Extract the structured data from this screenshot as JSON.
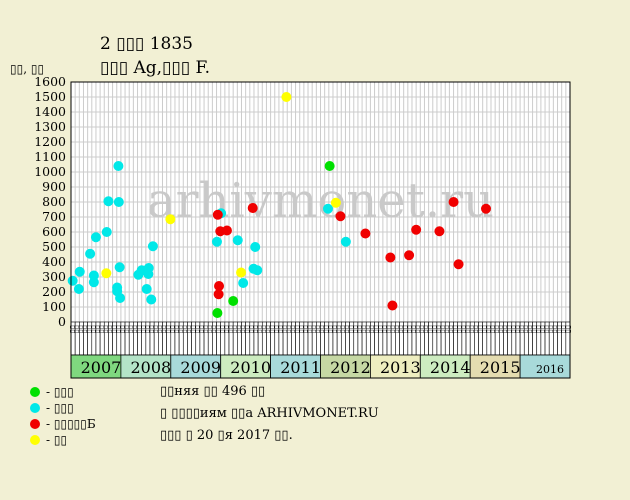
{
  "header": {
    "title_line1": "2 ▯▯▯ 1835",
    "title_line2": "▯▯▯ Ag,▯▯▯ F.",
    "y_axis_unit": "▯▯, ▯▯"
  },
  "watermark": "arhivmonet.ru",
  "legend": {
    "items": [
      {
        "label": "- ▯▯▯",
        "color": "#00e000"
      },
      {
        "label": "- ▯▯▯",
        "color": "#00e8e8"
      },
      {
        "label": "- ▯▯▯▯▯Б",
        "color": "#f00000"
      },
      {
        "label": "- ▯▯",
        "color": "#ffff00"
      }
    ]
  },
  "notes": {
    "line1": "▯▯няя ▯▯ 496 ▯▯",
    "line2": "▯ ▯▯▯▯иям ▯▯а ARHIVMONET.RU",
    "line3": "▯▯▯ ▯ 20 ▯я 2017 ▯▯."
  },
  "colors": {
    "background": "#f2f0d4",
    "plot_background": "#ffffff",
    "grid": "#cccccc"
  },
  "chart_data": {
    "type": "scatter",
    "title": "2 ▯▯▯ 1835",
    "ylim": [
      0,
      1600
    ],
    "yticks": [
      0,
      100,
      200,
      300,
      400,
      500,
      600,
      700,
      800,
      900,
      1000,
      1100,
      1200,
      1300,
      1400,
      1500,
      1600
    ],
    "grid": true,
    "slots_per_year": 12,
    "slot_labels": [
      "▯▯",
      "▯▯",
      "▯▯",
      "▯▯",
      "▯▯",
      "▯▯",
      "▯▯",
      "▯▯",
      "▯▯",
      "▯▯",
      "▯▯",
      "▯▯"
    ],
    "years": [
      {
        "label": "2007",
        "color": "#7fd87f"
      },
      {
        "label": "2008",
        "color": "#b4e4c8"
      },
      {
        "label": "2009",
        "color": "#a8dada"
      },
      {
        "label": "2010",
        "color": "#cdecc0"
      },
      {
        "label": "2011",
        "color": "#a8dada"
      },
      {
        "label": "2012",
        "color": "#c6d8a4"
      },
      {
        "label": "2013",
        "color": "#eeeec0"
      },
      {
        "label": "2014",
        "color": "#cdecc0"
      },
      {
        "label": "2015",
        "color": "#e4dcb0"
      },
      {
        "label": "2016",
        "color": "#a8dada"
      }
    ],
    "series": [
      {
        "name": "▯▯▯",
        "color": "#00e000",
        "points": [
          {
            "x": 35.2,
            "y": 60
          },
          {
            "x": 39.0,
            "y": 140
          },
          {
            "x": 62.2,
            "y": 1040
          }
        ]
      },
      {
        "name": "▯▯▯",
        "color": "#00e8e8",
        "points": [
          {
            "x": 0.4,
            "y": 275
          },
          {
            "x": 1.9,
            "y": 220
          },
          {
            "x": 2.1,
            "y": 335
          },
          {
            "x": 4.6,
            "y": 455
          },
          {
            "x": 5.5,
            "y": 310
          },
          {
            "x": 5.5,
            "y": 265
          },
          {
            "x": 6.0,
            "y": 565
          },
          {
            "x": 8.6,
            "y": 600
          },
          {
            "x": 9.0,
            "y": 805
          },
          {
            "x": 11.1,
            "y": 230
          },
          {
            "x": 11.1,
            "y": 205
          },
          {
            "x": 11.4,
            "y": 1040
          },
          {
            "x": 11.5,
            "y": 800
          },
          {
            "x": 11.7,
            "y": 365
          },
          {
            "x": 11.8,
            "y": 160
          },
          {
            "x": 16.2,
            "y": 315
          },
          {
            "x": 17.0,
            "y": 345
          },
          {
            "x": 18.2,
            "y": 220
          },
          {
            "x": 18.6,
            "y": 320
          },
          {
            "x": 18.7,
            "y": 360
          },
          {
            "x": 19.3,
            "y": 150
          },
          {
            "x": 19.7,
            "y": 505
          },
          {
            "x": 35.1,
            "y": 535
          },
          {
            "x": 36.1,
            "y": 725
          },
          {
            "x": 40.1,
            "y": 545
          },
          {
            "x": 41.4,
            "y": 260
          },
          {
            "x": 43.9,
            "y": 355
          },
          {
            "x": 44.3,
            "y": 500
          },
          {
            "x": 44.8,
            "y": 345
          },
          {
            "x": 61.8,
            "y": 755
          },
          {
            "x": 66.1,
            "y": 535
          }
        ]
      },
      {
        "name": "▯▯▯▯▯Б",
        "color": "#f00000",
        "points": [
          {
            "x": 35.3,
            "y": 715
          },
          {
            "x": 35.5,
            "y": 185
          },
          {
            "x": 35.6,
            "y": 240
          },
          {
            "x": 35.9,
            "y": 605
          },
          {
            "x": 37.5,
            "y": 610
          },
          {
            "x": 43.7,
            "y": 760
          },
          {
            "x": 64.8,
            "y": 705
          },
          {
            "x": 70.8,
            "y": 590
          },
          {
            "x": 76.8,
            "y": 430
          },
          {
            "x": 77.3,
            "y": 110
          },
          {
            "x": 81.3,
            "y": 445
          },
          {
            "x": 83.0,
            "y": 615
          },
          {
            "x": 88.6,
            "y": 605
          },
          {
            "x": 92.0,
            "y": 800
          },
          {
            "x": 93.2,
            "y": 385
          },
          {
            "x": 99.8,
            "y": 755
          }
        ]
      },
      {
        "name": "▯▯",
        "color": "#ffff00",
        "points": [
          {
            "x": 8.5,
            "y": 325
          },
          {
            "x": 23.9,
            "y": 685
          },
          {
            "x": 40.9,
            "y": 330
          },
          {
            "x": 51.8,
            "y": 1500
          },
          {
            "x": 63.7,
            "y": 795
          }
        ]
      }
    ]
  }
}
